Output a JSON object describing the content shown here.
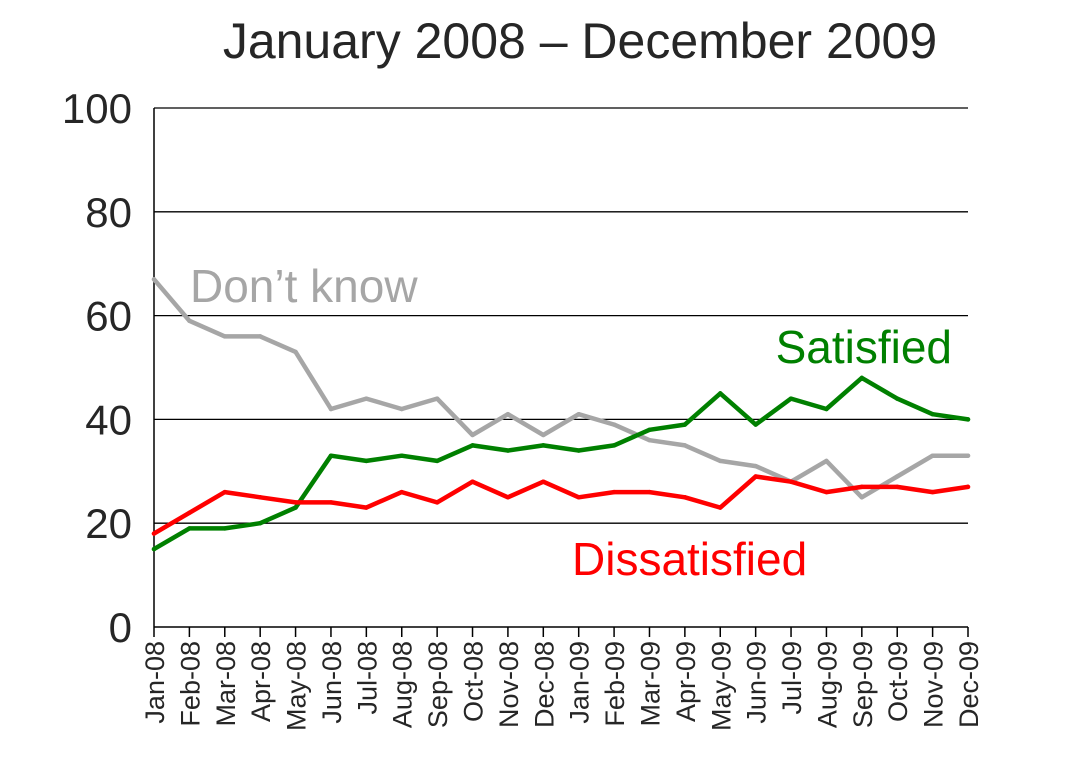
{
  "chart_data": {
    "type": "line",
    "title": "January 2008 – December 2009",
    "xlabel": "",
    "ylabel": "",
    "ylim": [
      0,
      100
    ],
    "yticks": [
      "0",
      "20",
      "40",
      "60",
      "80",
      "100"
    ],
    "grid": true,
    "categories": [
      "Jan-08",
      "Feb-08",
      "Mar-08",
      "Apr-08",
      "May-08",
      "Jun-08",
      "Jul-08",
      "Aug-08",
      "Sep-08",
      "Oct-08",
      "Nov-08",
      "Dec-08",
      "Jan-09",
      "Feb-09",
      "Mar-09",
      "Apr-09",
      "May-09",
      "Jun-09",
      "Jul-09",
      "Aug-09",
      "Sep-09",
      "Oct-09",
      "Nov-09",
      "Dec-09"
    ],
    "series": [
      {
        "name": "Don’t know",
        "color": "#a6a6a6",
        "values": [
          67,
          59,
          56,
          56,
          53,
          42,
          44,
          42,
          44,
          37,
          41,
          37,
          41,
          39,
          36,
          35,
          32,
          31,
          28,
          32,
          25,
          29,
          33,
          33
        ]
      },
      {
        "name": "Satisfied",
        "color": "#008000",
        "values": [
          15,
          19,
          19,
          20,
          23,
          33,
          32,
          33,
          32,
          35,
          34,
          35,
          34,
          35,
          38,
          39,
          45,
          39,
          44,
          42,
          48,
          44,
          41,
          40
        ]
      },
      {
        "name": "Dissatisfied",
        "color": "#ff0000",
        "values": [
          18,
          22,
          26,
          25,
          24,
          24,
          23,
          26,
          24,
          28,
          25,
          28,
          25,
          26,
          26,
          25,
          23,
          29,
          28,
          26,
          27,
          27,
          26,
          27
        ]
      }
    ]
  }
}
